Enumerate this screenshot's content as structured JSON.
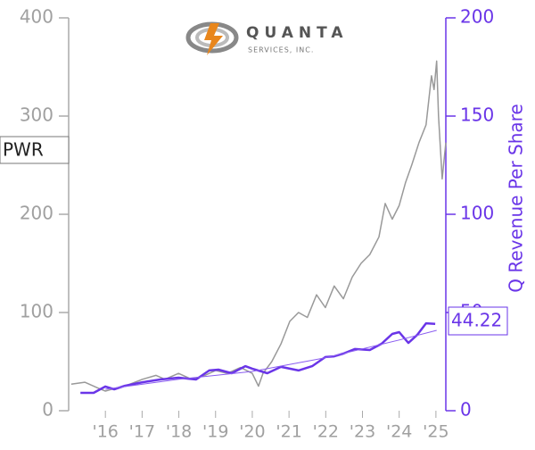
{
  "logo": {
    "name": "QUANTA",
    "subtitle": "SERVICES, INC."
  },
  "chart_data": {
    "type": "line",
    "y2label": "Q Revenue Per Share",
    "xlim": [
      2015.0,
      2025.27
    ],
    "xticks": [
      {
        "value": 2016,
        "label": "'16"
      },
      {
        "value": 2017,
        "label": "'17"
      },
      {
        "value": 2018,
        "label": "'18"
      },
      {
        "value": 2019,
        "label": "'19"
      },
      {
        "value": 2020,
        "label": "'20"
      },
      {
        "value": 2021,
        "label": "'21"
      },
      {
        "value": 2022,
        "label": "'22"
      },
      {
        "value": 2023,
        "label": "'23"
      },
      {
        "value": 2024,
        "label": "'24"
      },
      {
        "value": 2025,
        "label": "'25"
      }
    ],
    "ylim": [
      0,
      400
    ],
    "yticks": [
      0,
      100,
      200,
      300,
      400
    ],
    "y2lim": [
      0,
      200
    ],
    "y2ticks": [
      0,
      50,
      100,
      150,
      200
    ],
    "series": [
      {
        "name": "PWR",
        "color": "#999999",
        "x": [
          2015.07,
          2015.44,
          2015.8,
          2016.0,
          2016.29,
          2016.53,
          2017.01,
          2017.38,
          2017.62,
          2017.99,
          2018.35,
          2018.71,
          2019.0,
          2019.32,
          2019.68,
          2020.0,
          2020.17,
          2020.29,
          2020.53,
          2020.78,
          2021.02,
          2021.26,
          2021.5,
          2021.75,
          2021.99,
          2022.23,
          2022.48,
          2022.72,
          2022.96,
          2023.2,
          2023.45,
          2023.62,
          2023.81,
          2024.0,
          2024.17,
          2024.34,
          2024.54,
          2024.73,
          2024.88,
          2024.95,
          2025.02,
          2025.07,
          2025.17,
          2025.27
        ],
        "values": [
          27,
          29,
          23,
          20,
          23,
          25,
          32,
          36,
          32,
          38,
          32,
          36,
          41,
          38,
          44,
          38,
          25,
          38,
          50,
          68,
          91,
          100,
          95,
          118,
          105,
          127,
          114,
          136,
          150,
          159,
          177,
          211,
          195,
          209,
          232,
          250,
          273,
          291,
          341,
          327,
          356,
          300,
          236,
          273
        ]
      },
      {
        "color": "#6a35e8",
        "axis": "y2",
        "x": [
          2015.32,
          2015.68,
          2016.0,
          2016.24,
          2016.53,
          2017.01,
          2017.5,
          2017.99,
          2018.47,
          2018.83,
          2019.08,
          2019.44,
          2019.81,
          2020.0,
          2020.41,
          2020.78,
          2021.26,
          2021.63,
          2021.99,
          2022.23,
          2022.48,
          2022.79,
          2023.2,
          2023.52,
          2023.81,
          2024.0,
          2024.25,
          2024.49,
          2024.73,
          2024.98
        ],
        "values": [
          9.1,
          9.1,
          12.3,
          10.9,
          12.7,
          14.5,
          15.9,
          16.8,
          15.9,
          20.5,
          20.9,
          19.1,
          22.7,
          21.4,
          19.1,
          22.3,
          20.5,
          22.7,
          27.3,
          27.7,
          29.1,
          31.4,
          30.9,
          34.1,
          39.1,
          40.0,
          34.5,
          38.6,
          44.5,
          44.22
        ]
      },
      {
        "color": "#8a5cf0",
        "axis": "y2",
        "x": [
          2016.0,
          2018.0,
          2020.0,
          2022.0,
          2024.0,
          2025.02
        ],
        "values": [
          10.9,
          16,
          20,
          27,
          36,
          40.9
        ]
      }
    ]
  }
}
